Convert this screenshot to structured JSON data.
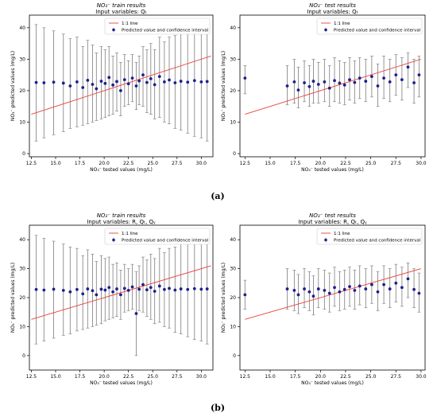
{
  "panel_labels": [
    "(a)",
    "(b)"
  ],
  "chart_data": [
    {
      "type": "scatter",
      "title": "NO₃⁻ train results",
      "subtitle": "Input variables: Qₜ",
      "xlabel": "NO₃⁻ tested values (mg/L)",
      "ylabel": "NO₃⁻ predicted values (mg/L)",
      "xlim": [
        12.3,
        31.2
      ],
      "ylim": [
        -1,
        44
      ],
      "xticks": [
        12.5,
        15.0,
        17.5,
        20.0,
        22.5,
        25.0,
        27.5,
        30.0
      ],
      "xtick_labels": [
        "12.5",
        "15.0",
        "17.5",
        "20.0",
        "22.5",
        "25.0",
        "27.5",
        "30.0"
      ],
      "yticks": [
        0,
        10,
        20,
        30,
        40
      ],
      "ytick_labels": [
        "0",
        "10",
        "20",
        "30",
        "40"
      ],
      "legend": {
        "position": "top-right",
        "entries": [
          "1:1 line",
          "Predicted value and confidence interval"
        ]
      },
      "line": {
        "x": [
          12.5,
          31.0
        ],
        "y": [
          12.5,
          31.0
        ]
      },
      "points": [
        {
          "x": 13.0,
          "y": 22.6,
          "lo": 4.0,
          "hi": 41.0
        },
        {
          "x": 13.8,
          "y": 22.5,
          "lo": 5.0,
          "hi": 40.0
        },
        {
          "x": 14.8,
          "y": 22.7,
          "lo": 6.0,
          "hi": 39.0
        },
        {
          "x": 15.8,
          "y": 22.4,
          "lo": 7.0,
          "hi": 38.0
        },
        {
          "x": 16.5,
          "y": 21.5,
          "lo": 8.0,
          "hi": 36.5
        },
        {
          "x": 17.2,
          "y": 22.8,
          "lo": 8.5,
          "hi": 37.0
        },
        {
          "x": 17.8,
          "y": 21.0,
          "lo": 9.0,
          "hi": 34.0
        },
        {
          "x": 18.3,
          "y": 23.3,
          "lo": 9.5,
          "hi": 36.0
        },
        {
          "x": 18.8,
          "y": 22.0,
          "lo": 10.0,
          "hi": 34.5
        },
        {
          "x": 19.2,
          "y": 20.6,
          "lo": 10.5,
          "hi": 32.0
        },
        {
          "x": 19.7,
          "y": 23.0,
          "lo": 11.0,
          "hi": 34.0
        },
        {
          "x": 20.1,
          "y": 22.3,
          "lo": 11.5,
          "hi": 33.0
        },
        {
          "x": 20.5,
          "y": 24.2,
          "lo": 12.0,
          "hi": 34.0
        },
        {
          "x": 20.9,
          "y": 21.8,
          "lo": 12.5,
          "hi": 31.0
        },
        {
          "x": 21.3,
          "y": 22.9,
          "lo": 13.5,
          "hi": 32.0
        },
        {
          "x": 21.7,
          "y": 20.0,
          "lo": 12.0,
          "hi": 29.0
        },
        {
          "x": 22.1,
          "y": 23.5,
          "lo": 15.0,
          "hi": 31.5
        },
        {
          "x": 22.5,
          "y": 22.2,
          "lo": 15.5,
          "hi": 29.5
        },
        {
          "x": 22.9,
          "y": 24.0,
          "lo": 16.5,
          "hi": 31.5
        },
        {
          "x": 23.3,
          "y": 21.5,
          "lo": 14.0,
          "hi": 29.0
        },
        {
          "x": 23.6,
          "y": 23.1,
          "lo": 15.5,
          "hi": 31.0
        },
        {
          "x": 24.0,
          "y": 25.0,
          "lo": 15.0,
          "hi": 34.0
        },
        {
          "x": 24.4,
          "y": 22.6,
          "lo": 13.0,
          "hi": 33.0
        },
        {
          "x": 24.8,
          "y": 23.8,
          "lo": 12.5,
          "hi": 35.0
        },
        {
          "x": 25.2,
          "y": 21.9,
          "lo": 11.0,
          "hi": 33.0
        },
        {
          "x": 25.7,
          "y": 24.5,
          "lo": 11.5,
          "hi": 37.0
        },
        {
          "x": 26.2,
          "y": 22.8,
          "lo": 10.0,
          "hi": 35.5
        },
        {
          "x": 26.7,
          "y": 23.4,
          "lo": 9.5,
          "hi": 37.0
        },
        {
          "x": 27.3,
          "y": 22.5,
          "lo": 8.0,
          "hi": 37.5
        },
        {
          "x": 27.9,
          "y": 23.0,
          "lo": 7.5,
          "hi": 38.5
        },
        {
          "x": 28.6,
          "y": 22.7,
          "lo": 6.5,
          "hi": 39.0
        },
        {
          "x": 29.3,
          "y": 23.2,
          "lo": 5.5,
          "hi": 40.5
        },
        {
          "x": 30.0,
          "y": 22.8,
          "lo": 5.0,
          "hi": 41.0
        },
        {
          "x": 30.6,
          "y": 22.9,
          "lo": 4.0,
          "hi": 42.0
        }
      ]
    },
    {
      "type": "scatter",
      "title": "NO₃⁻ test results",
      "subtitle": "Input variables: Qₜ",
      "xlabel": "NO₃⁻ tested values (mg/L)",
      "ylabel": "NO₃⁻ predicted values (mg/L)",
      "xlim": [
        12.0,
        30.4
      ],
      "ylim": [
        -1,
        44
      ],
      "xticks": [
        12.5,
        15.0,
        17.5,
        20.0,
        22.5,
        25.0,
        27.5,
        30.0
      ],
      "xtick_labels": [
        "12.5",
        "15.0",
        "17.5",
        "20.0",
        "22.5",
        "25.0",
        "27.5",
        "30.0"
      ],
      "yticks": [
        0,
        10,
        20,
        30,
        40
      ],
      "ytick_labels": [
        "0",
        "10",
        "20",
        "30",
        "40"
      ],
      "legend": {
        "position": "top-center",
        "entries": [
          "1:1 line",
          "Predicted value and confidence interval"
        ]
      },
      "line": {
        "x": [
          12.5,
          30.0
        ],
        "y": [
          12.5,
          30.0
        ]
      },
      "points": [
        {
          "x": 12.5,
          "y": 24.0,
          "lo": 19.0,
          "hi": 28.0
        },
        {
          "x": 16.7,
          "y": 21.5,
          "lo": 15.5,
          "hi": 28.0
        },
        {
          "x": 17.4,
          "y": 22.8,
          "lo": 16.0,
          "hi": 30.0
        },
        {
          "x": 17.8,
          "y": 20.2,
          "lo": 14.5,
          "hi": 27.5
        },
        {
          "x": 18.4,
          "y": 22.5,
          "lo": 16.5,
          "hi": 29.5
        },
        {
          "x": 18.9,
          "y": 21.3,
          "lo": 15.0,
          "hi": 28.0
        },
        {
          "x": 19.3,
          "y": 23.0,
          "lo": 16.0,
          "hi": 30.0
        },
        {
          "x": 19.8,
          "y": 22.0,
          "lo": 16.0,
          "hi": 29.0
        },
        {
          "x": 20.4,
          "y": 22.8,
          "lo": 16.5,
          "hi": 30.0
        },
        {
          "x": 20.9,
          "y": 20.8,
          "lo": 15.0,
          "hi": 28.0
        },
        {
          "x": 21.4,
          "y": 23.2,
          "lo": 16.5,
          "hi": 30.5
        },
        {
          "x": 21.9,
          "y": 22.4,
          "lo": 16.0,
          "hi": 29.5
        },
        {
          "x": 22.4,
          "y": 21.8,
          "lo": 15.5,
          "hi": 29.0
        },
        {
          "x": 22.9,
          "y": 23.5,
          "lo": 17.0,
          "hi": 30.5
        },
        {
          "x": 23.4,
          "y": 22.6,
          "lo": 16.0,
          "hi": 29.5
        },
        {
          "x": 23.9,
          "y": 24.0,
          "lo": 17.5,
          "hi": 30.5
        },
        {
          "x": 24.5,
          "y": 23.0,
          "lo": 16.5,
          "hi": 30.0
        },
        {
          "x": 25.1,
          "y": 24.5,
          "lo": 18.0,
          "hi": 31.0
        },
        {
          "x": 25.7,
          "y": 21.5,
          "lo": 15.0,
          "hi": 28.5
        },
        {
          "x": 26.3,
          "y": 24.0,
          "lo": 17.5,
          "hi": 31.0
        },
        {
          "x": 26.9,
          "y": 22.8,
          "lo": 16.5,
          "hi": 30.0
        },
        {
          "x": 27.5,
          "y": 25.0,
          "lo": 18.5,
          "hi": 31.5
        },
        {
          "x": 28.1,
          "y": 23.5,
          "lo": 17.0,
          "hi": 30.5
        },
        {
          "x": 28.7,
          "y": 27.5,
          "lo": 21.0,
          "hi": 32.0
        },
        {
          "x": 29.3,
          "y": 22.5,
          "lo": 16.0,
          "hi": 30.0
        },
        {
          "x": 29.8,
          "y": 25.0,
          "lo": 18.0,
          "hi": 31.0
        }
      ]
    },
    {
      "type": "scatter",
      "title": "NO₃⁻ train results",
      "subtitle": "Input variables: R, Qₜ, Qᵧ",
      "xlabel": "NO₃⁻ tested values (mg/L)",
      "ylabel": "NO₃⁻ predicted values (mg/L)",
      "xlim": [
        12.3,
        31.2
      ],
      "ylim": [
        -5,
        45
      ],
      "xticks": [
        12.5,
        15.0,
        17.5,
        20.0,
        22.5,
        25.0,
        27.5,
        30.0
      ],
      "xtick_labels": [
        "12.5",
        "15.0",
        "17.5",
        "20.0",
        "22.5",
        "25.0",
        "27.5",
        "30.0"
      ],
      "yticks": [
        0,
        10,
        20,
        30,
        40
      ],
      "ytick_labels": [
        "0",
        "10",
        "20",
        "30",
        "40"
      ],
      "legend": {
        "position": "top-right",
        "entries": [
          "1:1 line",
          "Predicted value and confidence interval"
        ]
      },
      "line": {
        "x": [
          12.5,
          31.0
        ],
        "y": [
          12.5,
          31.0
        ]
      },
      "points": [
        {
          "x": 13.0,
          "y": 22.8,
          "lo": 4.0,
          "hi": 41.5
        },
        {
          "x": 13.8,
          "y": 22.6,
          "lo": 5.0,
          "hi": 40.5
        },
        {
          "x": 14.8,
          "y": 22.9,
          "lo": 6.0,
          "hi": 39.5
        },
        {
          "x": 15.8,
          "y": 22.5,
          "lo": 7.0,
          "hi": 38.5
        },
        {
          "x": 16.5,
          "y": 22.0,
          "lo": 7.5,
          "hi": 37.5
        },
        {
          "x": 17.2,
          "y": 22.8,
          "lo": 8.5,
          "hi": 37.0
        },
        {
          "x": 17.8,
          "y": 21.3,
          "lo": 9.0,
          "hi": 34.5
        },
        {
          "x": 18.3,
          "y": 23.0,
          "lo": 9.5,
          "hi": 36.5
        },
        {
          "x": 18.8,
          "y": 22.4,
          "lo": 10.0,
          "hi": 35.0
        },
        {
          "x": 19.2,
          "y": 21.0,
          "lo": 10.5,
          "hi": 32.5
        },
        {
          "x": 19.7,
          "y": 22.9,
          "lo": 11.0,
          "hi": 34.5
        },
        {
          "x": 20.1,
          "y": 22.6,
          "lo": 12.0,
          "hi": 33.5
        },
        {
          "x": 20.5,
          "y": 23.5,
          "lo": 12.5,
          "hi": 34.0
        },
        {
          "x": 20.9,
          "y": 22.0,
          "lo": 13.0,
          "hi": 31.5
        },
        {
          "x": 21.3,
          "y": 23.0,
          "lo": 13.5,
          "hi": 32.0
        },
        {
          "x": 21.7,
          "y": 21.0,
          "lo": 12.5,
          "hi": 29.5
        },
        {
          "x": 22.1,
          "y": 23.2,
          "lo": 15.0,
          "hi": 31.5
        },
        {
          "x": 22.5,
          "y": 22.5,
          "lo": 15.5,
          "hi": 30.0
        },
        {
          "x": 22.9,
          "y": 23.7,
          "lo": 16.0,
          "hi": 31.5
        },
        {
          "x": 23.3,
          "y": 14.5,
          "lo": 0.0,
          "hi": 29.0
        },
        {
          "x": 23.6,
          "y": 22.9,
          "lo": 15.5,
          "hi": 31.0
        },
        {
          "x": 24.0,
          "y": 24.5,
          "lo": 15.0,
          "hi": 34.0
        },
        {
          "x": 24.4,
          "y": 22.7,
          "lo": 13.5,
          "hi": 33.0
        },
        {
          "x": 24.8,
          "y": 23.5,
          "lo": 12.5,
          "hi": 35.0
        },
        {
          "x": 25.2,
          "y": 22.2,
          "lo": 11.0,
          "hi": 33.5
        },
        {
          "x": 25.7,
          "y": 24.0,
          "lo": 11.5,
          "hi": 37.0
        },
        {
          "x": 26.2,
          "y": 22.8,
          "lo": 10.0,
          "hi": 35.5
        },
        {
          "x": 26.7,
          "y": 23.2,
          "lo": 9.5,
          "hi": 37.0
        },
        {
          "x": 27.3,
          "y": 22.6,
          "lo": 8.0,
          "hi": 37.5
        },
        {
          "x": 27.9,
          "y": 23.0,
          "lo": 7.5,
          "hi": 38.5
        },
        {
          "x": 28.6,
          "y": 22.8,
          "lo": 6.5,
          "hi": 39.0
        },
        {
          "x": 29.3,
          "y": 23.1,
          "lo": 5.5,
          "hi": 40.5
        },
        {
          "x": 30.0,
          "y": 22.9,
          "lo": 5.0,
          "hi": 41.0
        },
        {
          "x": 30.6,
          "y": 23.0,
          "lo": 4.0,
          "hi": 42.0
        }
      ]
    },
    {
      "type": "scatter",
      "title": "NO₃⁻ test results",
      "subtitle": "Input variables: R, Qₜ, Qᵧ",
      "xlabel": "NO₃⁻ tested values (mg/L)",
      "ylabel": "NO₃⁻ predicted values (mg/L)",
      "xlim": [
        12.0,
        30.4
      ],
      "ylim": [
        -5,
        45
      ],
      "xticks": [
        12.5,
        15.0,
        17.5,
        20.0,
        22.5,
        25.0,
        27.5,
        30.0
      ],
      "xtick_labels": [
        "12.5",
        "15.0",
        "17.5",
        "20.0",
        "22.5",
        "25.0",
        "27.5",
        "30.0"
      ],
      "yticks": [
        0,
        10,
        20,
        30,
        40
      ],
      "ytick_labels": [
        "0",
        "10",
        "20",
        "30",
        "40"
      ],
      "legend": {
        "position": "top-center",
        "entries": [
          "1:1 line",
          "Predicted value and confidence interval"
        ]
      },
      "line": {
        "x": [
          12.5,
          30.0
        ],
        "y": [
          12.5,
          30.0
        ]
      },
      "points": [
        {
          "x": 12.5,
          "y": 21.0,
          "lo": 16.0,
          "hi": 26.0
        },
        {
          "x": 16.7,
          "y": 23.0,
          "lo": 16.0,
          "hi": 30.0
        },
        {
          "x": 17.4,
          "y": 22.5,
          "lo": 15.5,
          "hi": 29.5
        },
        {
          "x": 17.8,
          "y": 21.0,
          "lo": 14.5,
          "hi": 28.0
        },
        {
          "x": 18.4,
          "y": 23.0,
          "lo": 16.5,
          "hi": 30.0
        },
        {
          "x": 18.9,
          "y": 22.0,
          "lo": 15.5,
          "hi": 29.0
        },
        {
          "x": 19.3,
          "y": 20.5,
          "lo": 14.0,
          "hi": 27.5
        },
        {
          "x": 19.8,
          "y": 23.0,
          "lo": 16.5,
          "hi": 30.0
        },
        {
          "x": 20.4,
          "y": 22.5,
          "lo": 16.0,
          "hi": 29.5
        },
        {
          "x": 20.9,
          "y": 21.5,
          "lo": 15.0,
          "hi": 28.5
        },
        {
          "x": 21.4,
          "y": 23.5,
          "lo": 17.0,
          "hi": 30.5
        },
        {
          "x": 21.9,
          "y": 22.0,
          "lo": 15.5,
          "hi": 29.0
        },
        {
          "x": 22.4,
          "y": 22.8,
          "lo": 16.0,
          "hi": 29.5
        },
        {
          "x": 22.9,
          "y": 23.8,
          "lo": 17.0,
          "hi": 30.5
        },
        {
          "x": 23.4,
          "y": 22.5,
          "lo": 16.0,
          "hi": 29.5
        },
        {
          "x": 23.9,
          "y": 24.0,
          "lo": 17.5,
          "hi": 31.0
        },
        {
          "x": 24.5,
          "y": 23.0,
          "lo": 16.5,
          "hi": 30.0
        },
        {
          "x": 25.1,
          "y": 24.5,
          "lo": 18.0,
          "hi": 31.0
        },
        {
          "x": 25.7,
          "y": 22.0,
          "lo": 15.5,
          "hi": 29.0
        },
        {
          "x": 26.3,
          "y": 24.5,
          "lo": 18.0,
          "hi": 31.0
        },
        {
          "x": 26.9,
          "y": 23.0,
          "lo": 16.5,
          "hi": 30.0
        },
        {
          "x": 27.5,
          "y": 25.0,
          "lo": 18.5,
          "hi": 31.5
        },
        {
          "x": 28.1,
          "y": 23.5,
          "lo": 17.0,
          "hi": 30.5
        },
        {
          "x": 28.7,
          "y": 26.5,
          "lo": 20.0,
          "hi": 32.0
        },
        {
          "x": 29.3,
          "y": 22.8,
          "lo": 16.5,
          "hi": 30.0
        },
        {
          "x": 29.8,
          "y": 21.5,
          "lo": 15.0,
          "hi": 28.5
        }
      ]
    }
  ],
  "colors": {
    "point": "#1f1f8f",
    "errorbar": "#8a8a8a",
    "line": "#e8413b",
    "axis": "#000000",
    "legend_border": "#cccccc"
  }
}
